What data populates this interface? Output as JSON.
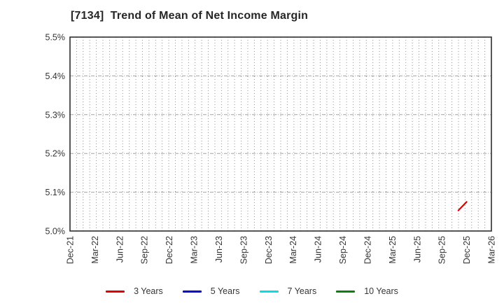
{
  "chart_data": {
    "type": "line",
    "title": "[7134]  Trend of Mean of Net Income Margin",
    "ylabel": "",
    "xlabel": "",
    "ylim": [
      5.0,
      5.5
    ],
    "y_ticks": [
      {
        "label": "5.0%",
        "value": 5.0
      },
      {
        "label": "5.1%",
        "value": 5.1
      },
      {
        "label": "5.2%",
        "value": 5.2
      },
      {
        "label": "5.3%",
        "value": 5.3
      },
      {
        "label": "5.4%",
        "value": 5.4
      },
      {
        "label": "5.5%",
        "value": 5.5
      }
    ],
    "y_grid_values": [
      5.1,
      5.2,
      5.3,
      5.4
    ],
    "x_axis": {
      "start": "Dec-21",
      "end": "Mar-26"
    },
    "x_ticks": [
      "Dec-21",
      "Mar-22",
      "Jun-22",
      "Sep-22",
      "Dec-22",
      "Mar-23",
      "Jun-23",
      "Sep-23",
      "Dec-23",
      "Mar-24",
      "Jun-24",
      "Sep-24",
      "Dec-24",
      "Mar-25",
      "Jun-25",
      "Sep-25",
      "Dec-25",
      "Mar-26"
    ],
    "grid": {
      "vertical": "fine dotted",
      "horizontal": "dashed at each 0.1% tick"
    },
    "legend_position": "bottom center",
    "series": [
      {
        "name": "3 Years",
        "color": "#e60000",
        "points": [
          {
            "x": "Nov-25",
            "y": 5.053
          },
          {
            "x": "Dec-25",
            "y": 5.075
          }
        ]
      },
      {
        "name": "5 Years",
        "color": "#0000dd",
        "points": []
      },
      {
        "name": "7 Years",
        "color": "#00e0ea",
        "points": []
      },
      {
        "name": "10 Years",
        "color": "#0b800b",
        "points": []
      }
    ]
  }
}
